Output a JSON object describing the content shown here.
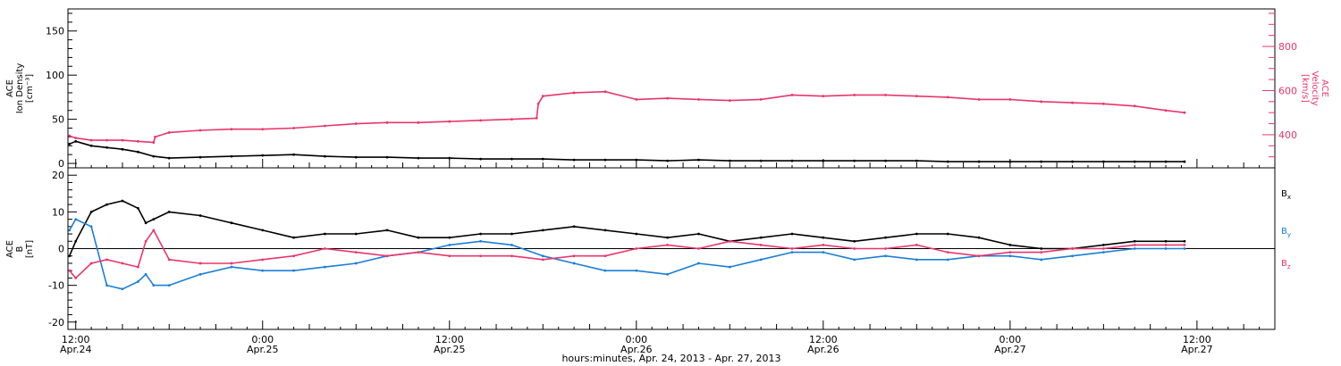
{
  "colors": {
    "black": "#000000",
    "pink": "#e8366a",
    "blue": "#1a7fd8"
  },
  "xaxis_caption": "hours:minutes, Apr. 24, 2013 - Apr. 27, 2013",
  "xticks": [
    {
      "hour": 12,
      "time": "12:00",
      "date": "Apr.24"
    },
    {
      "hour": 24,
      "time": "0:00",
      "date": "Apr.25"
    },
    {
      "hour": 36,
      "time": "12:00",
      "date": "Apr.25"
    },
    {
      "hour": 48,
      "time": "0:00",
      "date": "Apr.26"
    },
    {
      "hour": 60,
      "time": "12:00",
      "date": "Apr.26"
    },
    {
      "hour": 72,
      "time": "0:00",
      "date": "Apr.27"
    },
    {
      "hour": 84,
      "time": "12:00",
      "date": "Apr.27"
    }
  ],
  "top_panel": {
    "left_label": [
      "ACE",
      "Ion Density",
      "[cm⁻³]"
    ],
    "right_label": [
      "ACE",
      "Velocity",
      "[km/s]"
    ],
    "left_ticks": [
      "0",
      "50",
      "100",
      "150"
    ],
    "right_ticks": [
      "400",
      "600",
      "800"
    ]
  },
  "bottom_panel": {
    "left_label": [
      "ACE",
      "B",
      "[nT]"
    ],
    "left_ticks": [
      "-20",
      "-10",
      "0",
      "10",
      "20"
    ],
    "legend": [
      {
        "label": "Bx",
        "base": "B",
        "sub": "x",
        "color": "#000000"
      },
      {
        "label": "By",
        "base": "B",
        "sub": "y",
        "color": "#1a7fd8"
      },
      {
        "label": "Bz",
        "base": "B",
        "sub": "z",
        "color": "#e8366a"
      }
    ]
  },
  "chart_data": [
    {
      "type": "scatter",
      "title": "",
      "xlabel": "hours:minutes, Apr. 24, 2013 - Apr. 27, 2013",
      "x_units": "hours since 2013-04-24 00:00",
      "xlim": [
        11.5,
        89
      ],
      "ylabel_left": "ACE Ion Density [cm⁻³]",
      "ylim_left": [
        -5,
        175
      ],
      "ylabel_right": "ACE Velocity [km/s]",
      "ylim_right": [
        250,
        970
      ],
      "series": [
        {
          "name": "Ion Density",
          "axis": "left",
          "color": "#000000",
          "x": [
            11.6,
            12,
            13,
            14,
            15,
            16,
            17,
            18,
            20,
            22,
            24,
            26,
            28,
            30,
            32,
            34,
            36,
            38,
            40,
            42,
            44,
            46,
            48,
            50,
            52,
            54,
            56,
            58,
            60,
            62,
            64,
            66,
            68,
            70,
            72,
            74,
            76,
            78,
            80,
            82,
            83.2
          ],
          "y": [
            22,
            25,
            20,
            18,
            16,
            13,
            8,
            6,
            7,
            8,
            9,
            10,
            8,
            7,
            7,
            6,
            6,
            5,
            5,
            5,
            4,
            4,
            4,
            3,
            4,
            3,
            3,
            3,
            3,
            3,
            3,
            3,
            2,
            2,
            2,
            2,
            2,
            2,
            2,
            2,
            2
          ]
        },
        {
          "name": "Velocity",
          "axis": "right",
          "color": "#e8366a",
          "x": [
            11.6,
            12,
            13,
            14,
            15,
            16,
            17,
            17.1,
            18,
            20,
            22,
            24,
            26,
            28,
            30,
            32,
            34,
            36,
            38,
            40,
            41.6,
            41.7,
            42,
            44,
            46,
            48,
            50,
            52,
            54,
            56,
            58,
            60,
            62,
            64,
            66,
            68,
            70,
            72,
            74,
            76,
            78,
            80,
            82,
            83.2
          ],
          "y": [
            395,
            385,
            375,
            375,
            375,
            370,
            365,
            390,
            410,
            420,
            425,
            425,
            430,
            440,
            450,
            455,
            455,
            460,
            465,
            470,
            475,
            540,
            575,
            590,
            595,
            560,
            565,
            560,
            555,
            560,
            580,
            575,
            580,
            580,
            575,
            570,
            560,
            560,
            550,
            545,
            540,
            530,
            510,
            500
          ]
        }
      ]
    },
    {
      "type": "scatter",
      "title": "",
      "xlabel": "hours:minutes, Apr. 24, 2013 - Apr. 27, 2013",
      "x_units": "hours since 2013-04-24 00:00",
      "xlim": [
        11.5,
        89
      ],
      "ylabel": "ACE B [nT]",
      "ylim": [
        -22,
        22
      ],
      "zero_line": true,
      "series": [
        {
          "name": "Bx",
          "color": "#000000",
          "x": [
            11.6,
            12,
            13,
            14,
            15,
            16,
            16.5,
            17,
            18,
            20,
            22,
            24,
            26,
            28,
            30,
            32,
            34,
            36,
            38,
            40,
            42,
            44,
            46,
            48,
            50,
            52,
            54,
            56,
            58,
            60,
            62,
            64,
            66,
            68,
            70,
            72,
            74,
            76,
            78,
            80,
            82,
            83.2
          ],
          "y": [
            -2,
            2,
            10,
            12,
            13,
            11,
            7,
            8,
            10,
            9,
            7,
            5,
            3,
            4,
            4,
            5,
            3,
            3,
            4,
            4,
            5,
            6,
            5,
            4,
            3,
            4,
            2,
            3,
            4,
            3,
            2,
            3,
            4,
            4,
            3,
            1,
            0,
            0,
            1,
            2,
            2,
            2
          ]
        },
        {
          "name": "By",
          "color": "#1a7fd8",
          "x": [
            11.6,
            12,
            13,
            14,
            15,
            16,
            16.5,
            17,
            18,
            20,
            22,
            24,
            26,
            28,
            30,
            32,
            34,
            36,
            38,
            40,
            42,
            44,
            46,
            48,
            50,
            52,
            54,
            56,
            58,
            60,
            62,
            64,
            66,
            68,
            70,
            72,
            74,
            76,
            78,
            80,
            82,
            83.2
          ],
          "y": [
            5,
            8,
            6,
            -10,
            -11,
            -9,
            -7,
            -10,
            -10,
            -7,
            -5,
            -6,
            -6,
            -5,
            -4,
            -2,
            -1,
            1,
            2,
            1,
            -2,
            -4,
            -6,
            -6,
            -7,
            -4,
            -5,
            -3,
            -1,
            -1,
            -3,
            -2,
            -3,
            -3,
            -2,
            -2,
            -3,
            -2,
            -1,
            0,
            0,
            0
          ]
        },
        {
          "name": "Bz",
          "color": "#e8366a",
          "x": [
            11.6,
            12,
            13,
            14,
            15,
            16,
            16.5,
            17,
            18,
            20,
            22,
            24,
            26,
            28,
            30,
            32,
            34,
            36,
            38,
            40,
            42,
            44,
            46,
            48,
            50,
            52,
            54,
            56,
            58,
            60,
            62,
            64,
            66,
            68,
            70,
            72,
            74,
            76,
            78,
            80,
            82,
            83.2
          ],
          "y": [
            -6,
            -8,
            -4,
            -3,
            -4,
            -5,
            2,
            5,
            -3,
            -4,
            -4,
            -3,
            -2,
            0,
            -1,
            -2,
            -1,
            -2,
            -2,
            -2,
            -3,
            -2,
            -2,
            0,
            1,
            0,
            2,
            1,
            0,
            1,
            0,
            0,
            1,
            -1,
            -2,
            -1,
            -1,
            0,
            0,
            1,
            1,
            1
          ]
        }
      ]
    }
  ]
}
